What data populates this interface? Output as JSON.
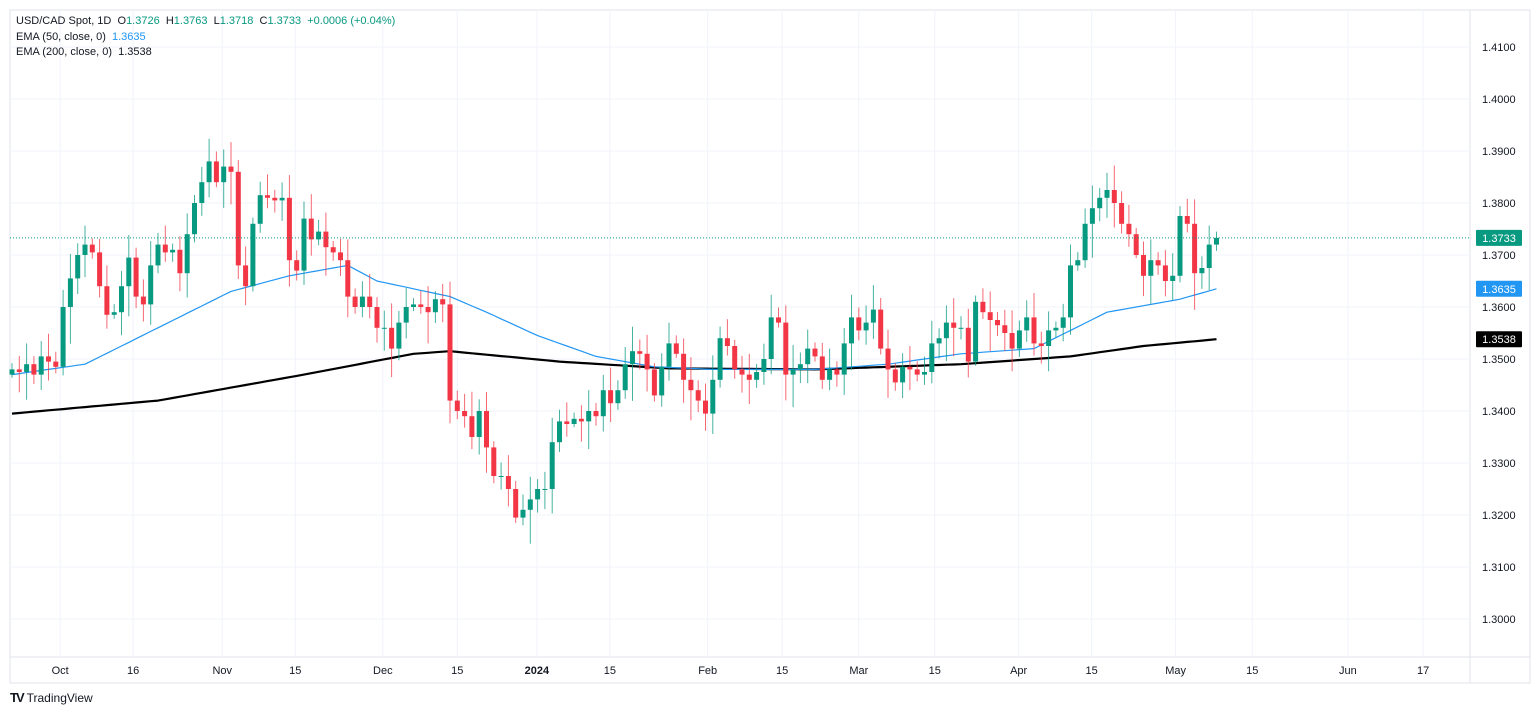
{
  "header": {
    "symbol": "USD/CAD Spot, 1D",
    "open_label": "O",
    "open": "1.3726",
    "high_label": "H",
    "high": "1.3763",
    "low_label": "L",
    "low": "1.3718",
    "close_label": "C",
    "close": "1.3733",
    "change": "+0.0006 (+0.04%)",
    "ema50_label": "EMA (50, close, 0)",
    "ema50_value": "1.3635",
    "ema200_label": "EMA (200, close, 0)",
    "ema200_value": "1.3538"
  },
  "branding": {
    "logo_text": "TradingView"
  },
  "chart_data": {
    "type": "candlestick",
    "title": "USD/CAD Spot, 1D",
    "ylim": [
      1.293,
      1.417
    ],
    "y_ticks": [
      "1.3000",
      "1.3100",
      "1.3200",
      "1.3300",
      "1.3400",
      "1.3500",
      "1.3600",
      "1.3700",
      "1.3800",
      "1.3900",
      "1.4000",
      "1.4100"
    ],
    "x_ticks": [
      {
        "label": "Oct",
        "index": 6.6
      },
      {
        "label": "16",
        "index": 16.6
      },
      {
        "label": "Nov",
        "index": 28.8
      },
      {
        "label": "15",
        "index": 38.8
      },
      {
        "label": "Dec",
        "index": 50.8
      },
      {
        "label": "15",
        "index": 61
      },
      {
        "label": "2024",
        "index": 71.9
      },
      {
        "label": "15",
        "index": 81.9
      },
      {
        "label": "Feb",
        "index": 95.3
      },
      {
        "label": "15",
        "index": 105.5
      },
      {
        "label": "Mar",
        "index": 116
      },
      {
        "label": "15",
        "index": 126.4
      },
      {
        "label": "Apr",
        "index": 137.9
      },
      {
        "label": "15",
        "index": 147.9
      },
      {
        "label": "May",
        "index": 159.4
      },
      {
        "label": "15",
        "index": 169.9
      },
      {
        "label": "Jun",
        "index": 183
      },
      {
        "label": "17",
        "index": 193.3
      }
    ],
    "first_open": 1.347,
    "closes": [
      1.348,
      1.3475,
      1.349,
      1.347,
      1.3505,
      1.3495,
      1.3485,
      1.36,
      1.3655,
      1.37,
      1.372,
      1.3705,
      1.364,
      1.3585,
      1.359,
      1.364,
      1.3695,
      1.362,
      1.3605,
      1.368,
      1.372,
      1.3705,
      1.371,
      1.3665,
      1.374,
      1.38,
      1.384,
      1.388,
      1.384,
      1.387,
      1.386,
      1.368,
      1.364,
      1.376,
      1.3815,
      1.381,
      1.3805,
      1.381,
      1.369,
      1.367,
      1.377,
      1.373,
      1.3745,
      1.3715,
      1.3705,
      1.369,
      1.362,
      1.36,
      1.362,
      1.36,
      1.356,
      1.356,
      1.352,
      1.357,
      1.36,
      1.3605,
      1.36,
      1.359,
      1.3615,
      1.3605,
      1.342,
      1.34,
      1.339,
      1.335,
      1.34,
      1.333,
      1.3275,
      1.3275,
      1.325,
      1.3195,
      1.321,
      1.323,
      1.325,
      1.325,
      1.334,
      1.338,
      1.3375,
      1.3385,
      1.338,
      1.34,
      1.339,
      1.344,
      1.3415,
      1.344,
      1.349,
      1.3515,
      1.351,
      1.348,
      1.343,
      1.3485,
      1.353,
      1.351,
      1.346,
      1.344,
      1.342,
      1.3395,
      1.346,
      1.354,
      1.3525,
      1.348,
      1.347,
      1.346,
      1.3475,
      1.35,
      1.358,
      1.357,
      1.347,
      1.348,
      1.349,
      1.352,
      1.3505,
      1.346,
      1.348,
      1.347,
      1.353,
      1.358,
      1.3555,
      1.357,
      1.3595,
      1.352,
      1.348,
      1.3455,
      1.3485,
      1.348,
      1.347,
      1.3475,
      1.353,
      1.354,
      1.357,
      1.356,
      1.356,
      1.3495,
      1.361,
      1.359,
      1.3575,
      1.3565,
      1.355,
      1.352,
      1.3555,
      1.358,
      1.353,
      1.3525,
      1.3555,
      1.356,
      1.358,
      1.368,
      1.369,
      1.376,
      1.379,
      1.381,
      1.3825,
      1.38,
      1.376,
      1.374,
      1.37,
      1.366,
      1.369,
      1.368,
      1.365,
      1.366,
      1.3775,
      1.376,
      1.3665,
      1.3675,
      1.372,
      1.3733
    ],
    "ema50": [
      [
        0,
        1.347
      ],
      [
        10,
        1.349
      ],
      [
        20,
        1.356
      ],
      [
        30,
        1.363
      ],
      [
        38,
        1.366
      ],
      [
        46,
        1.368
      ],
      [
        50,
        1.365
      ],
      [
        60,
        1.362
      ],
      [
        65,
        1.359
      ],
      [
        72,
        1.3545
      ],
      [
        80,
        1.3505
      ],
      [
        88,
        1.3485
      ],
      [
        96,
        1.348
      ],
      [
        110,
        1.348
      ],
      [
        120,
        1.349
      ],
      [
        130,
        1.351
      ],
      [
        140,
        1.352
      ],
      [
        150,
        1.359
      ],
      [
        160,
        1.3615
      ],
      [
        165,
        1.3635
      ]
    ],
    "ema200": [
      [
        0,
        1.3395
      ],
      [
        20,
        1.342
      ],
      [
        40,
        1.347
      ],
      [
        55,
        1.351
      ],
      [
        60,
        1.3515
      ],
      [
        75,
        1.3495
      ],
      [
        90,
        1.3482
      ],
      [
        110,
        1.348
      ],
      [
        130,
        1.349
      ],
      [
        145,
        1.3505
      ],
      [
        155,
        1.3525
      ],
      [
        165,
        1.3538
      ]
    ],
    "last_price_label": "1.3733",
    "ema50_price_label": "1.3635",
    "ema200_price_label": "1.3538",
    "colors": {
      "up": "#089981",
      "down": "#f23645",
      "ema50": "#2196f3",
      "ema200": "#000000",
      "grid": "#f0f3fa"
    }
  }
}
